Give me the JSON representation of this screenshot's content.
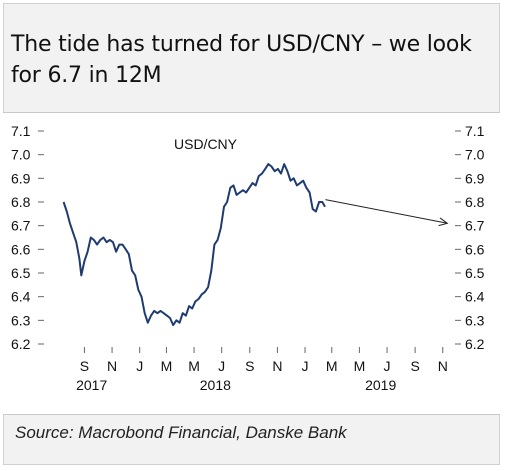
{
  "title": "The tide has turned for USD/CNY – we look for 6.7 in 12M",
  "source": "Source: Macrobond Financial, Danske Bank",
  "chart_data": {
    "type": "line",
    "series": [
      {
        "name": "USD/CNY",
        "points": [
          [
            "2017-07-31",
            6.8
          ],
          [
            "2017-08-07",
            6.76
          ],
          [
            "2017-08-14",
            6.71
          ],
          [
            "2017-08-21",
            6.67
          ],
          [
            "2017-08-28",
            6.63
          ],
          [
            "2017-09-04",
            6.56
          ],
          [
            "2017-09-08",
            6.49
          ],
          [
            "2017-09-15",
            6.55
          ],
          [
            "2017-09-22",
            6.59
          ],
          [
            "2017-09-29",
            6.65
          ],
          [
            "2017-10-06",
            6.64
          ],
          [
            "2017-10-13",
            6.62
          ],
          [
            "2017-10-20",
            6.64
          ],
          [
            "2017-10-27",
            6.65
          ],
          [
            "2017-11-03",
            6.63
          ],
          [
            "2017-11-10",
            6.64
          ],
          [
            "2017-11-17",
            6.63
          ],
          [
            "2017-11-24",
            6.59
          ],
          [
            "2017-12-01",
            6.62
          ],
          [
            "2017-12-08",
            6.62
          ],
          [
            "2017-12-15",
            6.6
          ],
          [
            "2017-12-22",
            6.58
          ],
          [
            "2017-12-29",
            6.51
          ],
          [
            "2018-01-05",
            6.49
          ],
          [
            "2018-01-12",
            6.43
          ],
          [
            "2018-01-19",
            6.4
          ],
          [
            "2018-01-26",
            6.33
          ],
          [
            "2018-02-02",
            6.29
          ],
          [
            "2018-02-09",
            6.32
          ],
          [
            "2018-02-16",
            6.34
          ],
          [
            "2018-02-23",
            6.33
          ],
          [
            "2018-03-02",
            6.34
          ],
          [
            "2018-03-09",
            6.33
          ],
          [
            "2018-03-16",
            6.32
          ],
          [
            "2018-03-23",
            6.31
          ],
          [
            "2018-03-30",
            6.28
          ],
          [
            "2018-04-06",
            6.3
          ],
          [
            "2018-04-13",
            6.29
          ],
          [
            "2018-04-20",
            6.33
          ],
          [
            "2018-04-27",
            6.32
          ],
          [
            "2018-05-04",
            6.36
          ],
          [
            "2018-05-11",
            6.35
          ],
          [
            "2018-05-18",
            6.38
          ],
          [
            "2018-05-25",
            6.39
          ],
          [
            "2018-06-01",
            6.41
          ],
          [
            "2018-06-08",
            6.42
          ],
          [
            "2018-06-15",
            6.44
          ],
          [
            "2018-06-22",
            6.51
          ],
          [
            "2018-06-29",
            6.62
          ],
          [
            "2018-07-06",
            6.64
          ],
          [
            "2018-07-13",
            6.69
          ],
          [
            "2018-07-20",
            6.78
          ],
          [
            "2018-07-27",
            6.8
          ],
          [
            "2018-08-03",
            6.86
          ],
          [
            "2018-08-10",
            6.87
          ],
          [
            "2018-08-17",
            6.83
          ],
          [
            "2018-08-24",
            6.84
          ],
          [
            "2018-08-31",
            6.85
          ],
          [
            "2018-09-07",
            6.84
          ],
          [
            "2018-09-14",
            6.86
          ],
          [
            "2018-09-21",
            6.88
          ],
          [
            "2018-09-28",
            6.87
          ],
          [
            "2018-10-05",
            6.91
          ],
          [
            "2018-10-12",
            6.92
          ],
          [
            "2018-10-19",
            6.94
          ],
          [
            "2018-10-26",
            6.96
          ],
          [
            "2018-11-02",
            6.95
          ],
          [
            "2018-11-09",
            6.93
          ],
          [
            "2018-11-16",
            6.94
          ],
          [
            "2018-11-23",
            6.92
          ],
          [
            "2018-11-30",
            6.96
          ],
          [
            "2018-12-07",
            6.93
          ],
          [
            "2018-12-14",
            6.89
          ],
          [
            "2018-12-21",
            6.9
          ],
          [
            "2018-12-28",
            6.87
          ],
          [
            "2019-01-04",
            6.88
          ],
          [
            "2019-01-11",
            6.89
          ],
          [
            "2019-01-18",
            6.86
          ],
          [
            "2019-01-25",
            6.84
          ],
          [
            "2019-02-01",
            6.77
          ],
          [
            "2019-02-08",
            6.76
          ],
          [
            "2019-02-15",
            6.8
          ],
          [
            "2019-02-22",
            6.8
          ],
          [
            "2019-02-28",
            6.78
          ]
        ]
      }
    ],
    "forecast_arrow": {
      "from": [
        "2019-03-01",
        6.81
      ],
      "to": [
        "2019-11-25",
        6.71
      ]
    },
    "series_label": "USD/CNY",
    "ylim": [
      6.2,
      7.1
    ],
    "y_ticks": [
      6.2,
      6.3,
      6.4,
      6.5,
      6.6,
      6.7,
      6.8,
      6.9,
      7.0,
      7.1
    ],
    "y_tick_labels": [
      "6.2",
      "6.3",
      "6.4",
      "6.5",
      "6.6",
      "6.7",
      "6.8",
      "6.9",
      "7.0",
      "7.1"
    ],
    "y_axis_sides": "left and right",
    "x_range": [
      "2017-07-01",
      "2019-12-01"
    ],
    "x_month_ticks": [
      {
        "label": "S",
        "date": "2017-09-15"
      },
      {
        "label": "N",
        "date": "2017-11-15"
      },
      {
        "label": "J",
        "date": "2018-01-15"
      },
      {
        "label": "M",
        "date": "2018-03-15"
      },
      {
        "label": "M",
        "date": "2018-05-15"
      },
      {
        "label": "J",
        "date": "2018-07-15"
      },
      {
        "label": "S",
        "date": "2018-09-15"
      },
      {
        "label": "N",
        "date": "2018-11-15"
      },
      {
        "label": "J",
        "date": "2019-01-15"
      },
      {
        "label": "M",
        "date": "2019-03-15"
      },
      {
        "label": "M",
        "date": "2019-05-15"
      },
      {
        "label": "J",
        "date": "2019-07-15"
      },
      {
        "label": "S",
        "date": "2019-09-15"
      },
      {
        "label": "N",
        "date": "2019-11-15"
      }
    ],
    "x_year_labels": [
      {
        "label": "2017",
        "date": "2017-10-01"
      },
      {
        "label": "2018",
        "date": "2018-07-01"
      },
      {
        "label": "2019",
        "date": "2019-07-01"
      }
    ],
    "grid": false,
    "colors": {
      "line": "#1f3b70",
      "arrow": "#222222",
      "text": "#111111"
    }
  }
}
